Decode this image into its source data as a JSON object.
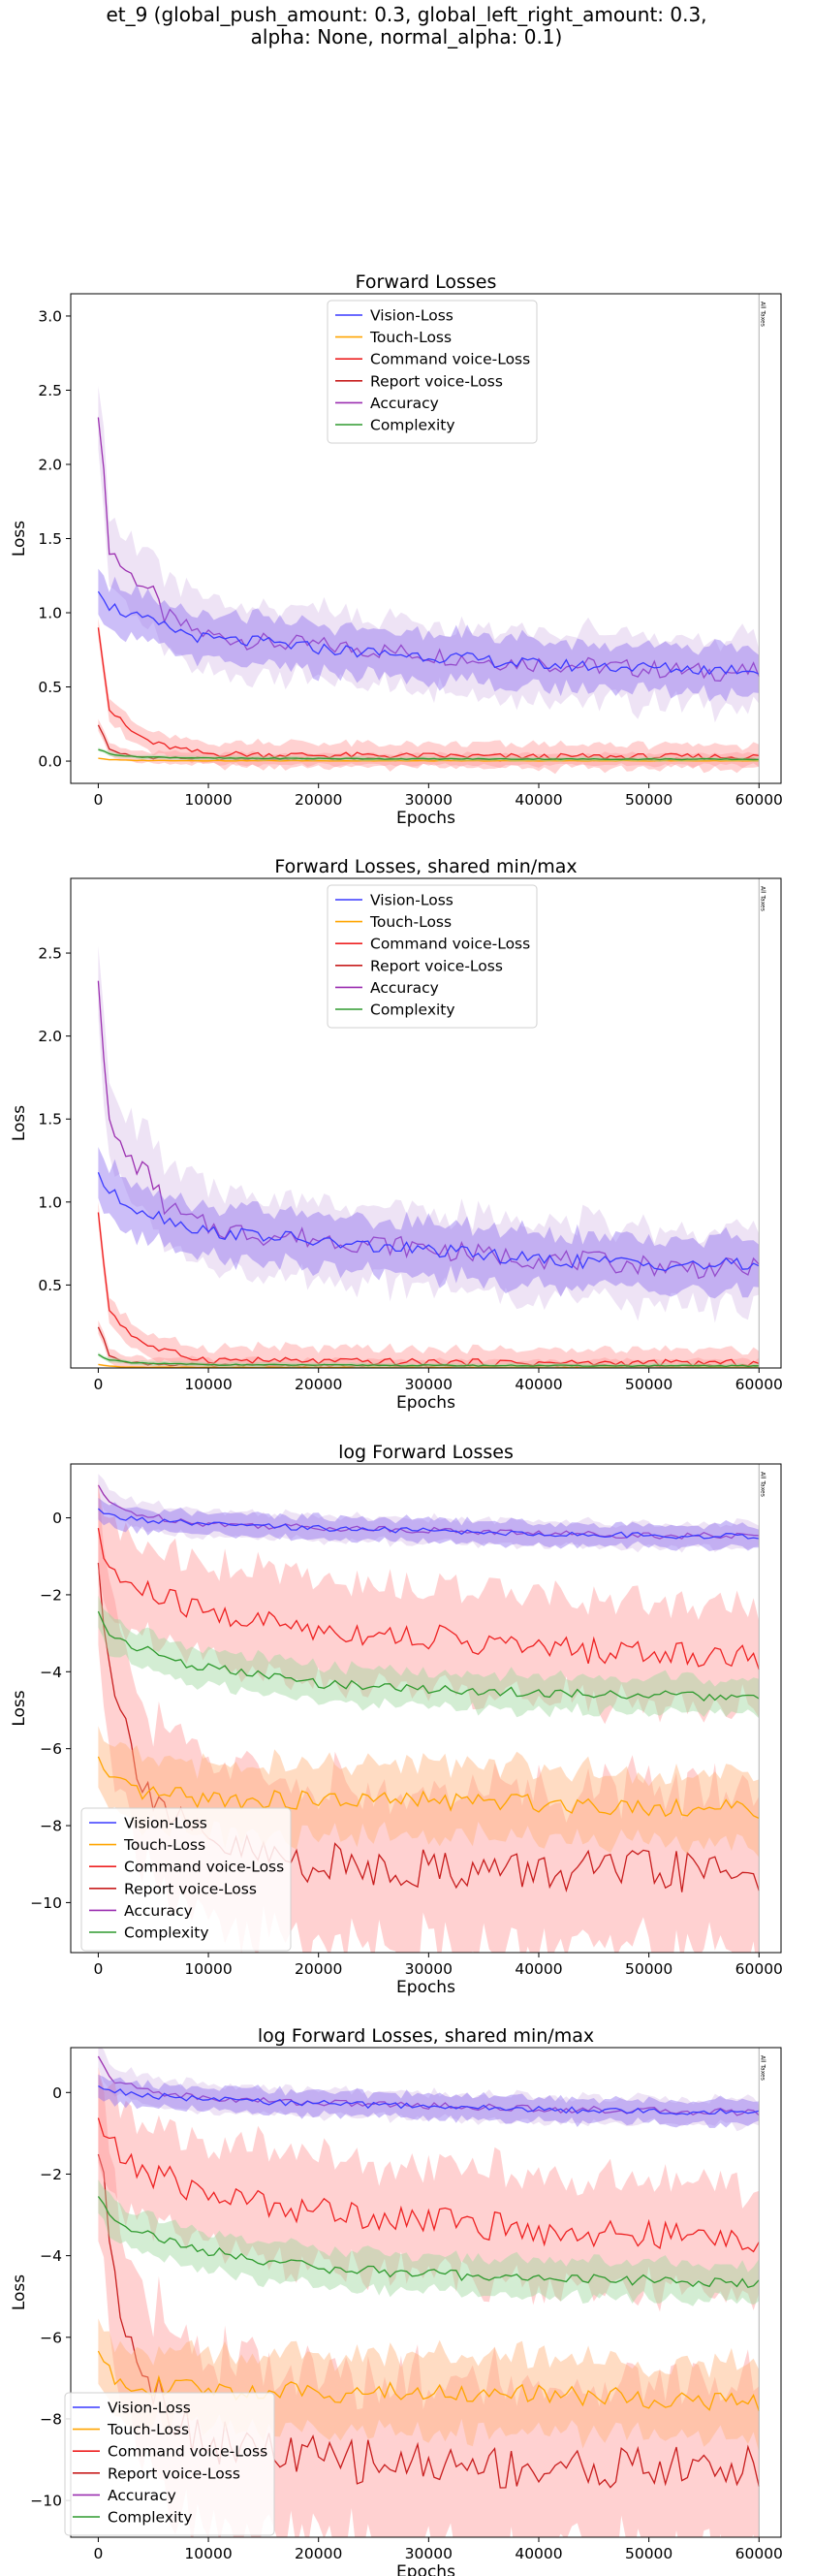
{
  "suptitle": {
    "line1": "et_9 (global_push_amount: 0.3, global_left_right_amount: 0.3,",
    "line2": "alpha: None, normal_alpha: 0.1)"
  },
  "colors": {
    "vision": "#3a3aff",
    "touch": "#ffa500",
    "command": "#ee2222",
    "report": "#c81e1e",
    "accuracy": "#9b2fb0",
    "complexity": "#2e9a2e",
    "vision_band": "#8f6ff0",
    "error_band": "#ff9a9a",
    "touch_band": "#ffb27a",
    "complexity_band": "#9ed69e",
    "accuracy_band": "#d9c1e8"
  },
  "vertical_marker_label": "All Taxes",
  "chart_data": [
    {
      "type": "line",
      "title": "Forward Losses",
      "xlabel": "Epochs",
      "ylabel": "Loss",
      "xlim": [
        -2500,
        62000
      ],
      "ylim": [
        -0.15,
        3.15
      ],
      "xticks": [
        0,
        10000,
        20000,
        30000,
        40000,
        50000,
        60000
      ],
      "yticks": [
        0.0,
        0.5,
        1.0,
        1.5,
        2.0,
        2.5,
        3.0
      ],
      "ytick_labels": [
        "0.0",
        "0.5",
        "1.0",
        "1.5",
        "2.0",
        "2.5",
        "3.0"
      ],
      "vertical_marker_x": 60000,
      "legend_position": "upper center",
      "series": [
        {
          "name": "Vision-Loss",
          "key": "vision",
          "x": [
            0,
            1000,
            3000,
            5000,
            8000,
            10000,
            15000,
            20000,
            25000,
            30000,
            35000,
            40000,
            45000,
            50000,
            55000,
            60000
          ],
          "values": [
            1.18,
            1.05,
            0.98,
            0.93,
            0.86,
            0.82,
            0.8,
            0.76,
            0.73,
            0.71,
            0.68,
            0.65,
            0.64,
            0.63,
            0.62,
            0.62
          ],
          "band": 0.12
        },
        {
          "name": "Touch-Loss",
          "key": "touch",
          "x": [
            0,
            1000,
            3000,
            10000,
            30000,
            60000
          ],
          "values": [
            0.02,
            0.01,
            0.005,
            0.003,
            0.002,
            0.002
          ],
          "band": 0.005
        },
        {
          "name": "Command voice-Loss",
          "key": "command",
          "x": [
            0,
            1000,
            3000,
            5000,
            8000,
            10000,
            20000,
            30000,
            40000,
            50000,
            60000
          ],
          "values": [
            0.92,
            0.35,
            0.2,
            0.12,
            0.07,
            0.05,
            0.04,
            0.035,
            0.03,
            0.03,
            0.03
          ],
          "band": 0.06
        },
        {
          "name": "Report voice-Loss",
          "key": "report",
          "x": [
            0,
            1000,
            3000,
            10000,
            30000,
            60000
          ],
          "values": [
            0.25,
            0.08,
            0.03,
            0.015,
            0.01,
            0.01
          ],
          "band": 0.03
        },
        {
          "name": "Accuracy",
          "key": "accuracy",
          "x": [
            0,
            1000,
            2000,
            3000,
            4000,
            5000,
            6000,
            8000,
            10000,
            15000,
            20000,
            25000,
            30000,
            35000,
            40000,
            45000,
            50000,
            55000,
            60000
          ],
          "values": [
            2.38,
            1.45,
            1.33,
            1.25,
            1.2,
            1.12,
            0.98,
            0.9,
            0.85,
            0.8,
            0.78,
            0.75,
            0.72,
            0.68,
            0.66,
            0.64,
            0.62,
            0.6,
            0.6
          ],
          "band": 0.18
        },
        {
          "name": "Complexity",
          "key": "complexity",
          "x": [
            0,
            1000,
            3000,
            10000,
            30000,
            60000
          ],
          "values": [
            0.08,
            0.05,
            0.03,
            0.02,
            0.015,
            0.012
          ],
          "band": 0.01
        }
      ]
    },
    {
      "type": "line",
      "title": "Forward Losses, shared min/max",
      "xlabel": "Epochs",
      "ylabel": "Loss",
      "xlim": [
        -2500,
        62000
      ],
      "ylim": [
        0.0,
        2.95
      ],
      "xticks": [
        0,
        10000,
        20000,
        30000,
        40000,
        50000,
        60000
      ],
      "yticks": [
        0.5,
        1.0,
        1.5,
        2.0,
        2.5
      ],
      "ytick_labels": [
        "0.5",
        "1.0",
        "1.5",
        "2.0",
        "2.5"
      ],
      "vertical_marker_x": 60000,
      "legend_position": "upper center",
      "series": [
        {
          "name": "Vision-Loss",
          "key": "vision",
          "x": [
            0,
            1000,
            3000,
            5000,
            8000,
            10000,
            15000,
            20000,
            25000,
            30000,
            35000,
            40000,
            45000,
            50000,
            55000,
            60000
          ],
          "values": [
            1.18,
            1.05,
            0.98,
            0.93,
            0.86,
            0.82,
            0.8,
            0.76,
            0.73,
            0.71,
            0.68,
            0.65,
            0.64,
            0.63,
            0.62,
            0.62
          ],
          "band": 0.12
        },
        {
          "name": "Touch-Loss",
          "key": "touch",
          "x": [
            0,
            1000,
            3000,
            10000,
            30000,
            60000
          ],
          "values": [
            0.02,
            0.01,
            0.005,
            0.003,
            0.002,
            0.002
          ],
          "band": 0.005
        },
        {
          "name": "Command voice-Loss",
          "key": "command",
          "x": [
            0,
            1000,
            3000,
            5000,
            8000,
            10000,
            20000,
            30000,
            40000,
            50000,
            60000
          ],
          "values": [
            0.92,
            0.35,
            0.2,
            0.12,
            0.07,
            0.05,
            0.04,
            0.035,
            0.03,
            0.03,
            0.03
          ],
          "band": 0.06
        },
        {
          "name": "Report voice-Loss",
          "key": "report",
          "x": [
            0,
            1000,
            3000,
            10000,
            30000,
            60000
          ],
          "values": [
            0.25,
            0.08,
            0.03,
            0.015,
            0.01,
            0.01
          ],
          "band": 0.03
        },
        {
          "name": "Accuracy",
          "key": "accuracy",
          "x": [
            0,
            1000,
            2000,
            3000,
            4000,
            5000,
            6000,
            8000,
            10000,
            15000,
            20000,
            25000,
            30000,
            35000,
            40000,
            45000,
            50000,
            55000,
            60000
          ],
          "values": [
            2.38,
            1.45,
            1.33,
            1.25,
            1.2,
            1.12,
            0.98,
            0.9,
            0.85,
            0.8,
            0.78,
            0.75,
            0.72,
            0.68,
            0.66,
            0.64,
            0.62,
            0.6,
            0.6
          ],
          "band": 0.18
        },
        {
          "name": "Complexity",
          "key": "complexity",
          "x": [
            0,
            1000,
            3000,
            10000,
            30000,
            60000
          ],
          "values": [
            0.08,
            0.05,
            0.03,
            0.02,
            0.015,
            0.012
          ],
          "band": 0.01
        }
      ]
    },
    {
      "type": "line",
      "title": "log Forward Losses",
      "xlabel": "Epochs",
      "ylabel": "Loss",
      "xlim": [
        -2500,
        62000
      ],
      "ylim": [
        -11.3,
        1.4
      ],
      "xticks": [
        0,
        10000,
        20000,
        30000,
        40000,
        50000,
        60000
      ],
      "yticks": [
        0,
        -2,
        -4,
        -6,
        -8,
        -10
      ],
      "ytick_labels": [
        "0",
        "−2",
        "−4",
        "−6",
        "−8",
        "−10"
      ],
      "vertical_marker_x": 60000,
      "legend_position": "lower left",
      "series": [
        {
          "name": "Vision-Loss",
          "key": "vision",
          "x": [
            0,
            1000,
            3000,
            5000,
            10000,
            20000,
            30000,
            40000,
            50000,
            60000
          ],
          "values": [
            0.18,
            0.05,
            -0.02,
            -0.08,
            -0.18,
            -0.27,
            -0.34,
            -0.42,
            -0.46,
            -0.48
          ],
          "band": 0.22
        },
        {
          "name": "Touch-Loss",
          "key": "touch",
          "x": [
            0,
            1000,
            3000,
            5000,
            10000,
            20000,
            30000,
            40000,
            50000,
            60000
          ],
          "values": [
            -6.3,
            -6.9,
            -7.1,
            -7.2,
            -7.3,
            -7.35,
            -7.35,
            -7.4,
            -7.5,
            -7.6
          ],
          "band": 0.7
        },
        {
          "name": "Command voice-Loss",
          "key": "command",
          "x": [
            0,
            1000,
            3000,
            5000,
            8000,
            10000,
            15000,
            20000,
            25000,
            30000,
            40000,
            50000,
            60000
          ],
          "values": [
            -0.6,
            -1.3,
            -1.8,
            -2.0,
            -2.3,
            -2.5,
            -2.7,
            -2.9,
            -3.0,
            -3.1,
            -3.4,
            -3.5,
            -3.6
          ],
          "band": 1.0
        },
        {
          "name": "Report voice-Loss",
          "key": "report",
          "x": [
            0,
            1000,
            2000,
            3000,
            5000,
            8000,
            10000,
            15000,
            20000,
            30000,
            40000,
            50000,
            60000
          ],
          "values": [
            -1.3,
            -3.5,
            -5.0,
            -6.0,
            -7.2,
            -8.2,
            -8.5,
            -8.8,
            -9.0,
            -9.1,
            -9.2,
            -9.2,
            -9.2
          ],
          "band": 1.6
        },
        {
          "name": "Accuracy",
          "key": "accuracy",
          "x": [
            0,
            1000,
            3000,
            5000,
            10000,
            20000,
            30000,
            40000,
            50000,
            60000
          ],
          "values": [
            0.85,
            0.35,
            0.15,
            0.02,
            -0.15,
            -0.25,
            -0.32,
            -0.4,
            -0.45,
            -0.48
          ],
          "band": 0.25
        },
        {
          "name": "Complexity",
          "key": "complexity",
          "x": [
            0,
            1000,
            3000,
            5000,
            8000,
            10000,
            15000,
            20000,
            30000,
            40000,
            50000,
            60000
          ],
          "values": [
            -2.5,
            -3.0,
            -3.3,
            -3.5,
            -3.8,
            -3.9,
            -4.1,
            -4.3,
            -4.45,
            -4.55,
            -4.6,
            -4.7
          ],
          "band": 0.35
        }
      ]
    },
    {
      "type": "line",
      "title": "log Forward Losses, shared min/max",
      "xlabel": "Epochs",
      "ylabel": "Loss",
      "xlim": [
        -2500,
        62000
      ],
      "ylim": [
        -10.9,
        1.1
      ],
      "xticks": [
        0,
        10000,
        20000,
        30000,
        40000,
        50000,
        60000
      ],
      "yticks": [
        0,
        -2,
        -4,
        -6,
        -8,
        -10
      ],
      "ytick_labels": [
        "0",
        "−2",
        "−4",
        "−6",
        "−8",
        "−10"
      ],
      "vertical_marker_x": 60000,
      "legend_position": "lower left",
      "series": [
        {
          "name": "Vision-Loss",
          "key": "vision",
          "x": [
            0,
            1000,
            3000,
            5000,
            10000,
            20000,
            30000,
            40000,
            50000,
            60000
          ],
          "values": [
            0.18,
            0.05,
            -0.02,
            -0.08,
            -0.18,
            -0.27,
            -0.34,
            -0.42,
            -0.46,
            -0.48
          ],
          "band": 0.22
        },
        {
          "name": "Touch-Loss",
          "key": "touch",
          "x": [
            0,
            1000,
            3000,
            5000,
            10000,
            20000,
            30000,
            40000,
            50000,
            60000
          ],
          "values": [
            -6.3,
            -6.9,
            -7.1,
            -7.2,
            -7.3,
            -7.35,
            -7.35,
            -7.4,
            -7.5,
            -7.6
          ],
          "band": 0.7
        },
        {
          "name": "Command voice-Loss",
          "key": "command",
          "x": [
            0,
            1000,
            3000,
            5000,
            8000,
            10000,
            15000,
            20000,
            25000,
            30000,
            40000,
            50000,
            60000
          ],
          "values": [
            -0.6,
            -1.3,
            -1.8,
            -2.0,
            -2.3,
            -2.5,
            -2.7,
            -2.9,
            -3.0,
            -3.1,
            -3.4,
            -3.5,
            -3.6
          ],
          "band": 1.0
        },
        {
          "name": "Report voice-Loss",
          "key": "report",
          "x": [
            0,
            1000,
            2000,
            3000,
            5000,
            8000,
            10000,
            15000,
            20000,
            30000,
            40000,
            50000,
            60000
          ],
          "values": [
            -1.3,
            -3.5,
            -5.0,
            -6.0,
            -7.2,
            -8.2,
            -8.5,
            -8.8,
            -9.0,
            -9.1,
            -9.2,
            -9.2,
            -9.2
          ],
          "band": 1.6
        },
        {
          "name": "Accuracy",
          "key": "accuracy",
          "x": [
            0,
            1000,
            3000,
            5000,
            10000,
            20000,
            30000,
            40000,
            50000,
            60000
          ],
          "values": [
            0.85,
            0.35,
            0.15,
            0.02,
            -0.15,
            -0.25,
            -0.32,
            -0.4,
            -0.45,
            -0.48
          ],
          "band": 0.25
        },
        {
          "name": "Complexity",
          "key": "complexity",
          "x": [
            0,
            1000,
            3000,
            5000,
            8000,
            10000,
            15000,
            20000,
            30000,
            40000,
            50000,
            60000
          ],
          "values": [
            -2.5,
            -3.0,
            -3.3,
            -3.5,
            -3.8,
            -3.9,
            -4.1,
            -4.3,
            -4.45,
            -4.55,
            -4.6,
            -4.7
          ],
          "band": 0.35
        }
      ]
    }
  ]
}
